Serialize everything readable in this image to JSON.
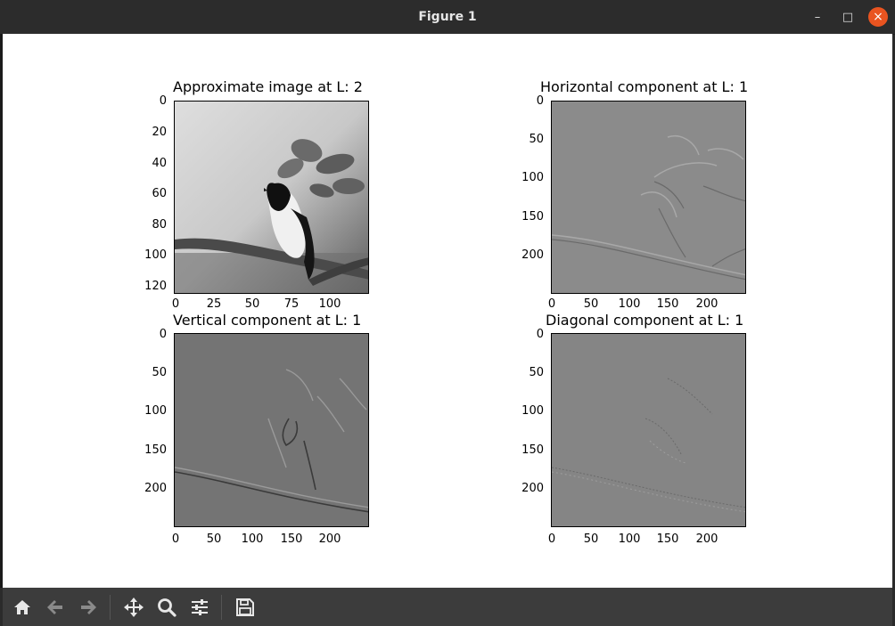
{
  "window": {
    "title": "Figure 1"
  },
  "window_controls": {
    "minimize": "–",
    "maximize": "□",
    "close": "×"
  },
  "toolbar": {
    "buttons": [
      "home-icon",
      "back-icon",
      "forward-icon",
      "pan-icon",
      "zoom-icon",
      "configure-subplots-icon",
      "save-icon"
    ]
  },
  "subplots": [
    {
      "title": "Approximate image at L: 2",
      "yticks": [
        "0",
        "20",
        "40",
        "60",
        "80",
        "100",
        "120"
      ],
      "xticks": [
        "0",
        "25",
        "50",
        "75",
        "100"
      ],
      "image": "approximation (grayscale bird on branch)"
    },
    {
      "title": "Horizontal component at L: 1",
      "yticks": [
        "0",
        "50",
        "100",
        "150",
        "200"
      ],
      "xticks": [
        "0",
        "50",
        "100",
        "150",
        "200"
      ],
      "image": "horizontal detail coefficients"
    },
    {
      "title": "Vertical component at L: 1",
      "yticks": [
        "0",
        "50",
        "100",
        "150",
        "200"
      ],
      "xticks": [
        "0",
        "50",
        "100",
        "150",
        "200"
      ],
      "image": "vertical detail coefficients"
    },
    {
      "title": "Diagonal component at L: 1",
      "yticks": [
        "0",
        "50",
        "100",
        "150",
        "200"
      ],
      "xticks": [
        "0",
        "50",
        "100",
        "150",
        "200"
      ],
      "image": "diagonal detail coefficients"
    }
  ]
}
